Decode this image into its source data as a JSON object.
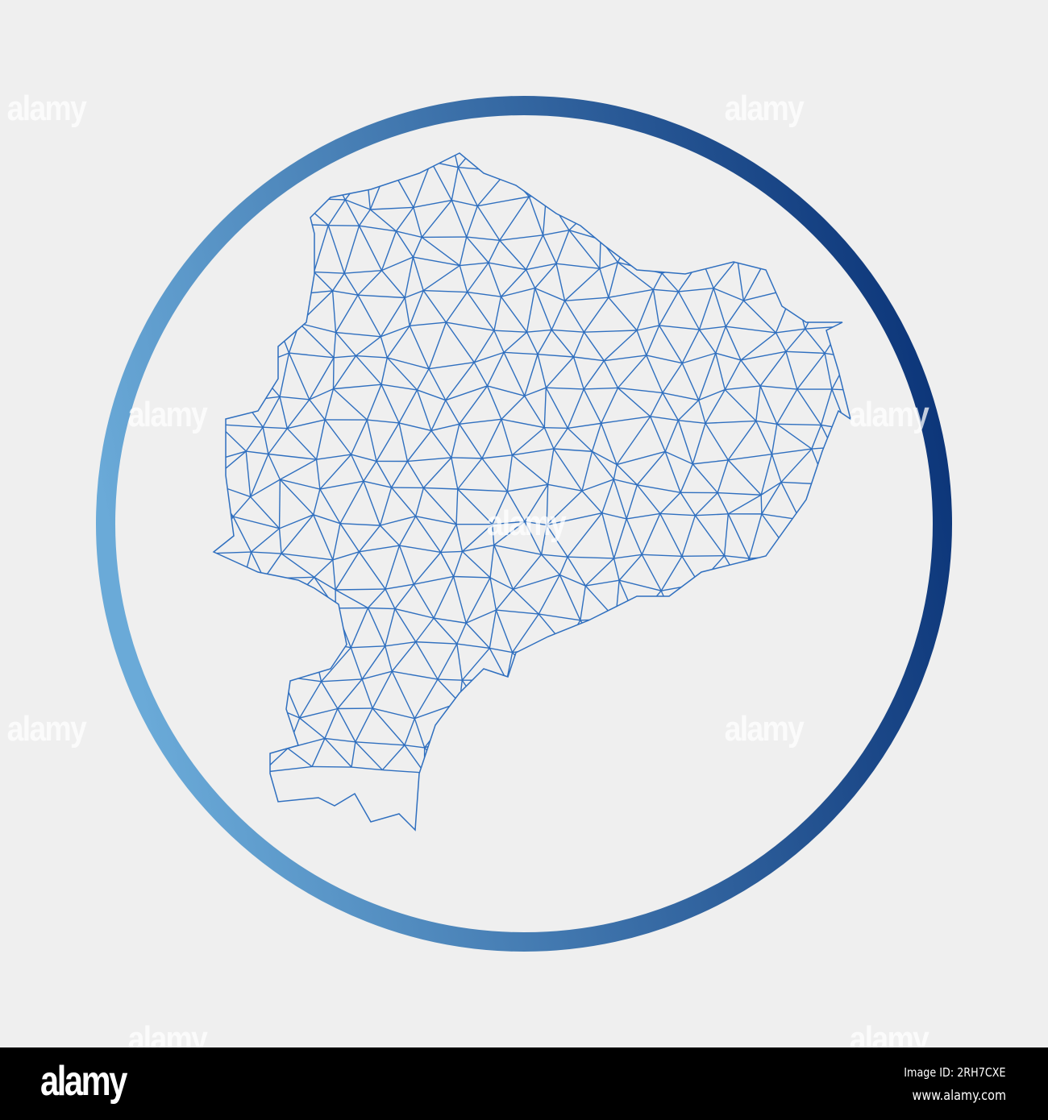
{
  "colors": {
    "background": "#efefef",
    "ring_light": "#6aaad8",
    "ring_dark": "#0b3478",
    "mesh": "#2f6fbf"
  },
  "watermark": "alamy",
  "footer": {
    "logo": "alamy",
    "image_id": "Image ID: 2RH7CXE",
    "url": "www.alamy.com"
  }
}
